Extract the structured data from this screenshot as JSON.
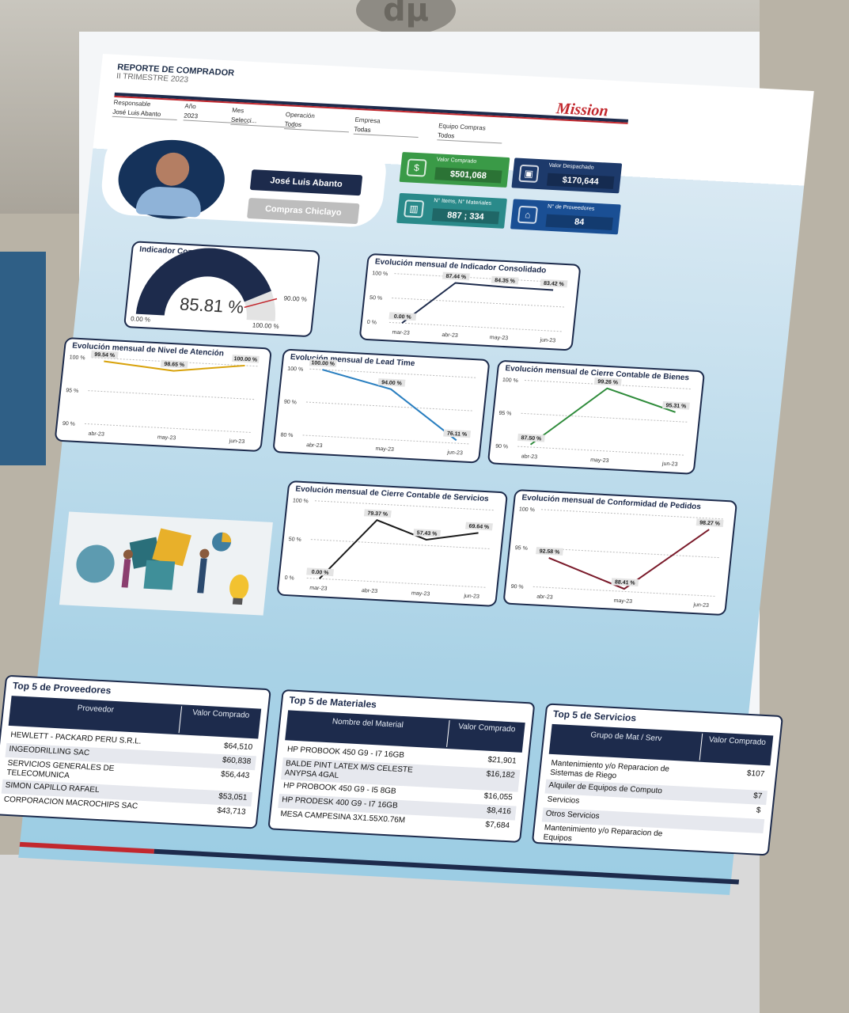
{
  "header": {
    "title": "REPORTE DE COMPRADOR",
    "subtitle": "II TRIMESTRE 2023",
    "logo_text": "Mission",
    "filters": [
      {
        "label": "Responsable",
        "value": "José Luis Abanto"
      },
      {
        "label": "Año",
        "value": "2023"
      },
      {
        "label": "Mes",
        "value": "Selecci..."
      },
      {
        "label": "Operación",
        "value": "Todos"
      },
      {
        "label": "Empresa",
        "value": "Todas"
      },
      {
        "label": "Equipo Compras",
        "value": "Todos"
      }
    ]
  },
  "profile": {
    "name": "José Luis Abanto",
    "department": "Compras Chiclayo"
  },
  "kpis": [
    {
      "label": "Valor Comprado",
      "value": "$501,068",
      "color": "#3a9a47",
      "icon": "money-icon"
    },
    {
      "label": "Valor Despachado",
      "value": "$170,644",
      "color": "#1d3a6b",
      "icon": "box-icon"
    },
    {
      "label": "N° Items, N° Materiales",
      "value": "887 ; 334",
      "color": "#2a8a8a",
      "icon": "chart-icon"
    },
    {
      "label": "N° de Proveedores",
      "value": "84",
      "color": "#1a4f94",
      "icon": "supplier-icon"
    }
  ],
  "gauge": {
    "title": "Indicador Consolidado",
    "value": "85.81 %",
    "pct": 85.81,
    "min_label": "0.00 %",
    "max_label": "100.00 %",
    "target_label": "90.00 %",
    "target": 90
  },
  "charts": {
    "consolidado": {
      "title": "Evolución mensual de Indicador Consolidado",
      "yticks": [
        "100 %",
        "50 %",
        "0 %"
      ]
    },
    "atencion": {
      "title": "Evolución mensual de Nivel de Atención",
      "yticks": [
        "100 %",
        "95 %",
        "90 %"
      ]
    },
    "leadtime": {
      "title": "Evolución mensual de Lead Time",
      "yticks": [
        "100 %",
        "90 %",
        "80 %"
      ]
    },
    "bienes": {
      "title": "Evolución mensual de Cierre Contable de Bienes",
      "yticks": [
        "100 %",
        "95 %",
        "90 %"
      ]
    },
    "servicios": {
      "title": "Evolución mensual de Cierre Contable de Servicios",
      "yticks": [
        "100 %",
        "50 %",
        "0 %"
      ]
    },
    "pedidos": {
      "title": "Evolución mensual de Conformidad de Pedidos",
      "yticks": [
        "100 %",
        "95 %",
        "90 %"
      ]
    }
  },
  "chart_data": [
    {
      "type": "line",
      "title": "Evolución mensual de Indicador Consolidado",
      "x": [
        "mar-23",
        "abr-23",
        "may-23",
        "jun-23"
      ],
      "series": [
        {
          "values": [
            0.0,
            87.44,
            84.35,
            83.42
          ]
        }
      ],
      "labels": [
        "0.00 %",
        "87.44 %",
        "84.35 %",
        "83.42 %"
      ],
      "ylim": [
        0,
        100
      ],
      "color": "#1d2b4c"
    },
    {
      "type": "line",
      "title": "Evolución mensual de Nivel de Atención",
      "x": [
        "abr-23",
        "may-23",
        "jun-23"
      ],
      "series": [
        {
          "values": [
            99.54,
            98.65,
            100.0
          ]
        }
      ],
      "labels": [
        "99.54 %",
        "98.65 %",
        "100.00 %"
      ],
      "ylim": [
        90,
        100
      ],
      "color": "#d8a20a"
    },
    {
      "type": "line",
      "title": "Evolución mensual de Lead Time",
      "x": [
        "abr-23",
        "may-23",
        "jun-23"
      ],
      "series": [
        {
          "values": [
            100.0,
            94.0,
            76.11
          ]
        }
      ],
      "labels": [
        "100.00 %",
        "94.00 %",
        "76.11 %"
      ],
      "ylim": [
        75,
        100
      ],
      "color": "#2a7fc0"
    },
    {
      "type": "line",
      "title": "Evolución mensual de Cierre Contable de Bienes",
      "x": [
        "abr-23",
        "may-23",
        "jun-23"
      ],
      "series": [
        {
          "values": [
            87.5,
            99.26,
            95.31
          ]
        }
      ],
      "labels": [
        "87.50 %",
        "99.26 %",
        "95.31 %"
      ],
      "ylim": [
        87,
        100
      ],
      "color": "#2e8b3a"
    },
    {
      "type": "line",
      "title": "Evolución mensual de Cierre Contable de Servicios",
      "x": [
        "mar-23",
        "abr-23",
        "may-23",
        "jun-23"
      ],
      "series": [
        {
          "values": [
            0.0,
            79.37,
            57.43,
            69.64
          ]
        }
      ],
      "labels": [
        "0.00 %",
        "79.37 %",
        "57.43 %",
        "69.64 %"
      ],
      "ylim": [
        0,
        100
      ],
      "color": "#1a1a1a"
    },
    {
      "type": "line",
      "title": "Evolución mensual de Conformidad de Pedidos",
      "x": [
        "abr-23",
        "may-23",
        "jun-23"
      ],
      "series": [
        {
          "values": [
            92.58,
            88.41,
            98.27
          ]
        }
      ],
      "labels": [
        "92.58 %",
        "88.41 %",
        "98.27 %"
      ],
      "ylim": [
        88,
        100
      ],
      "color": "#7a1a2a"
    }
  ],
  "tables": {
    "proveedores": {
      "title": "Top 5 de Proveedores",
      "col1": "Proveedor",
      "col2": "Valor Comprado",
      "rows": [
        {
          "name": "HEWLETT - PACKARD PERU S.R.L.",
          "value": "$64,510"
        },
        {
          "name": "INGEODRILLING SAC",
          "value": "$60,838"
        },
        {
          "name": "SERVICIOS GENERALES DE TELECOMUNICA",
          "value": "$56,443"
        },
        {
          "name": "SIMON CAPILLO RAFAEL",
          "value": "$53,051"
        },
        {
          "name": "CORPORACION MACROCHIPS SAC",
          "value": "$43,713"
        }
      ]
    },
    "materiales": {
      "title": "Top 5 de Materiales",
      "col1": "Nombre del Material",
      "col2": "Valor Comprado",
      "rows": [
        {
          "name": "HP PROBOOK 450 G9 - I7 16GB",
          "value": "$21,901"
        },
        {
          "name": "BALDE PINT LATEX M/S CELESTE ANYPSA 4GAL",
          "value": "$16,182"
        },
        {
          "name": "HP PROBOOK 450 G9 - I5 8GB",
          "value": "$16,055"
        },
        {
          "name": "HP PRODESK 400 G9 - I7 16GB",
          "value": "$8,416"
        },
        {
          "name": "MESA CAMPESINA 3X1.55X0.76M",
          "value": "$7,684"
        }
      ]
    },
    "servicios": {
      "title": "Top 5 de Servicios",
      "col1": "Grupo de Mat / Serv",
      "col2": "Valor Comprado",
      "rows": [
        {
          "name": "Mantenimiento y/o Reparacion de Sistemas de Riego",
          "value": "$107"
        },
        {
          "name": "Alquiler de Equipos de Computo",
          "value": "$7"
        },
        {
          "name": "Servicios",
          "value": "$"
        },
        {
          "name": "Otros Servicios",
          "value": ""
        },
        {
          "name": "Mantenimiento y/o Reparacion de Equipos",
          "value": ""
        }
      ]
    }
  }
}
